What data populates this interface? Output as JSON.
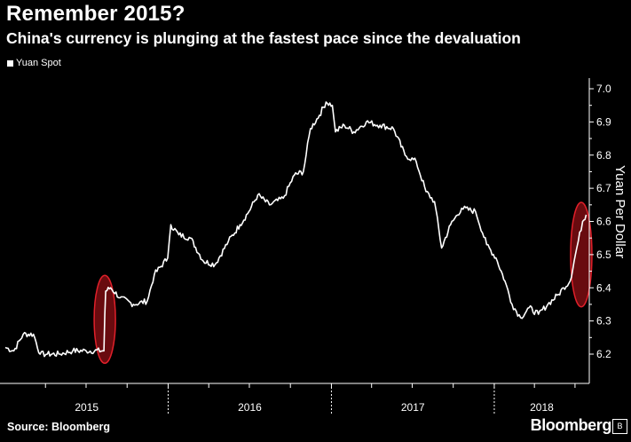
{
  "header": {
    "title": "Remember 2015?",
    "subtitle": "China's currency is plunging at the fastest pace since the devaluation"
  },
  "footer": {
    "source": "Source: Bloomberg",
    "brand": "Bloomberg"
  },
  "colors": {
    "background": "#000000",
    "line": "#ffffff",
    "highlight": "#c0141c"
  },
  "chart_data": {
    "type": "line",
    "title": "Remember 2015?",
    "subtitle": "China's currency is plunging at the fastest pace since the devaluation",
    "ylabel": "Yuan Per Dollar",
    "xlabel": "",
    "y_axis_side": "right",
    "ylim": [
      6.1,
      7.0
    ],
    "yticks": [
      "7.0",
      "6.9",
      "6.8",
      "6.7",
      "6.6",
      "6.5",
      "6.4",
      "6.3",
      "6.2"
    ],
    "xlim": [
      "2015-01-01",
      "2018-07-31"
    ],
    "x_tick_labels": [
      "2015",
      "2016",
      "2017",
      "2018"
    ],
    "grid": false,
    "legend_position": "top-left",
    "series": [
      {
        "name": "Yuan Spot",
        "x": [
          "2015-01-01",
          "2015-01-20",
          "2015-02-10",
          "2015-03-05",
          "2015-03-20",
          "2015-04-05",
          "2015-05-01",
          "2015-06-01",
          "2015-07-01",
          "2015-08-10",
          "2015-08-12",
          "2015-08-14",
          "2015-08-25",
          "2015-09-15",
          "2015-10-15",
          "2015-11-15",
          "2015-12-01",
          "2015-12-31",
          "2016-01-07",
          "2016-01-25",
          "2016-02-20",
          "2016-03-20",
          "2016-04-15",
          "2016-05-15",
          "2016-06-10",
          "2016-06-30",
          "2016-07-20",
          "2016-08-15",
          "2016-09-15",
          "2016-10-10",
          "2016-10-30",
          "2016-11-15",
          "2016-12-05",
          "2016-12-20",
          "2017-01-03",
          "2017-01-10",
          "2017-01-30",
          "2017-02-20",
          "2017-03-20",
          "2017-04-20",
          "2017-05-20",
          "2017-06-15",
          "2017-07-10",
          "2017-08-01",
          "2017-08-20",
          "2017-09-05",
          "2017-09-25",
          "2017-10-20",
          "2017-11-20",
          "2017-12-15",
          "2018-01-05",
          "2018-01-25",
          "2018-02-10",
          "2018-03-01",
          "2018-03-20",
          "2018-04-10",
          "2018-05-01",
          "2018-05-25",
          "2018-06-05",
          "2018-06-20",
          "2018-07-05",
          "2018-07-18",
          "2018-07-26"
        ],
        "values": [
          6.22,
          6.21,
          6.26,
          6.26,
          6.2,
          6.2,
          6.2,
          6.21,
          6.21,
          6.21,
          6.32,
          6.39,
          6.4,
          6.37,
          6.35,
          6.36,
          6.44,
          6.49,
          6.59,
          6.56,
          6.55,
          6.48,
          6.47,
          6.54,
          6.59,
          6.63,
          6.68,
          6.65,
          6.67,
          6.74,
          6.75,
          6.88,
          6.92,
          6.96,
          6.95,
          6.87,
          6.89,
          6.87,
          6.9,
          6.89,
          6.88,
          6.8,
          6.78,
          6.69,
          6.66,
          6.52,
          6.59,
          6.64,
          6.63,
          6.53,
          6.49,
          6.42,
          6.35,
          6.31,
          6.34,
          6.32,
          6.35,
          6.38,
          6.4,
          6.42,
          6.52,
          6.6,
          6.62
        ]
      }
    ],
    "annotations": [
      {
        "type": "ellipse-highlight",
        "x": "2015-08-12",
        "y_range": [
          6.21,
          6.4
        ],
        "color": "#c0141c"
      },
      {
        "type": "ellipse-highlight",
        "x": "2018-07-15",
        "y_range": [
          6.38,
          6.62
        ],
        "color": "#c0141c"
      }
    ]
  }
}
